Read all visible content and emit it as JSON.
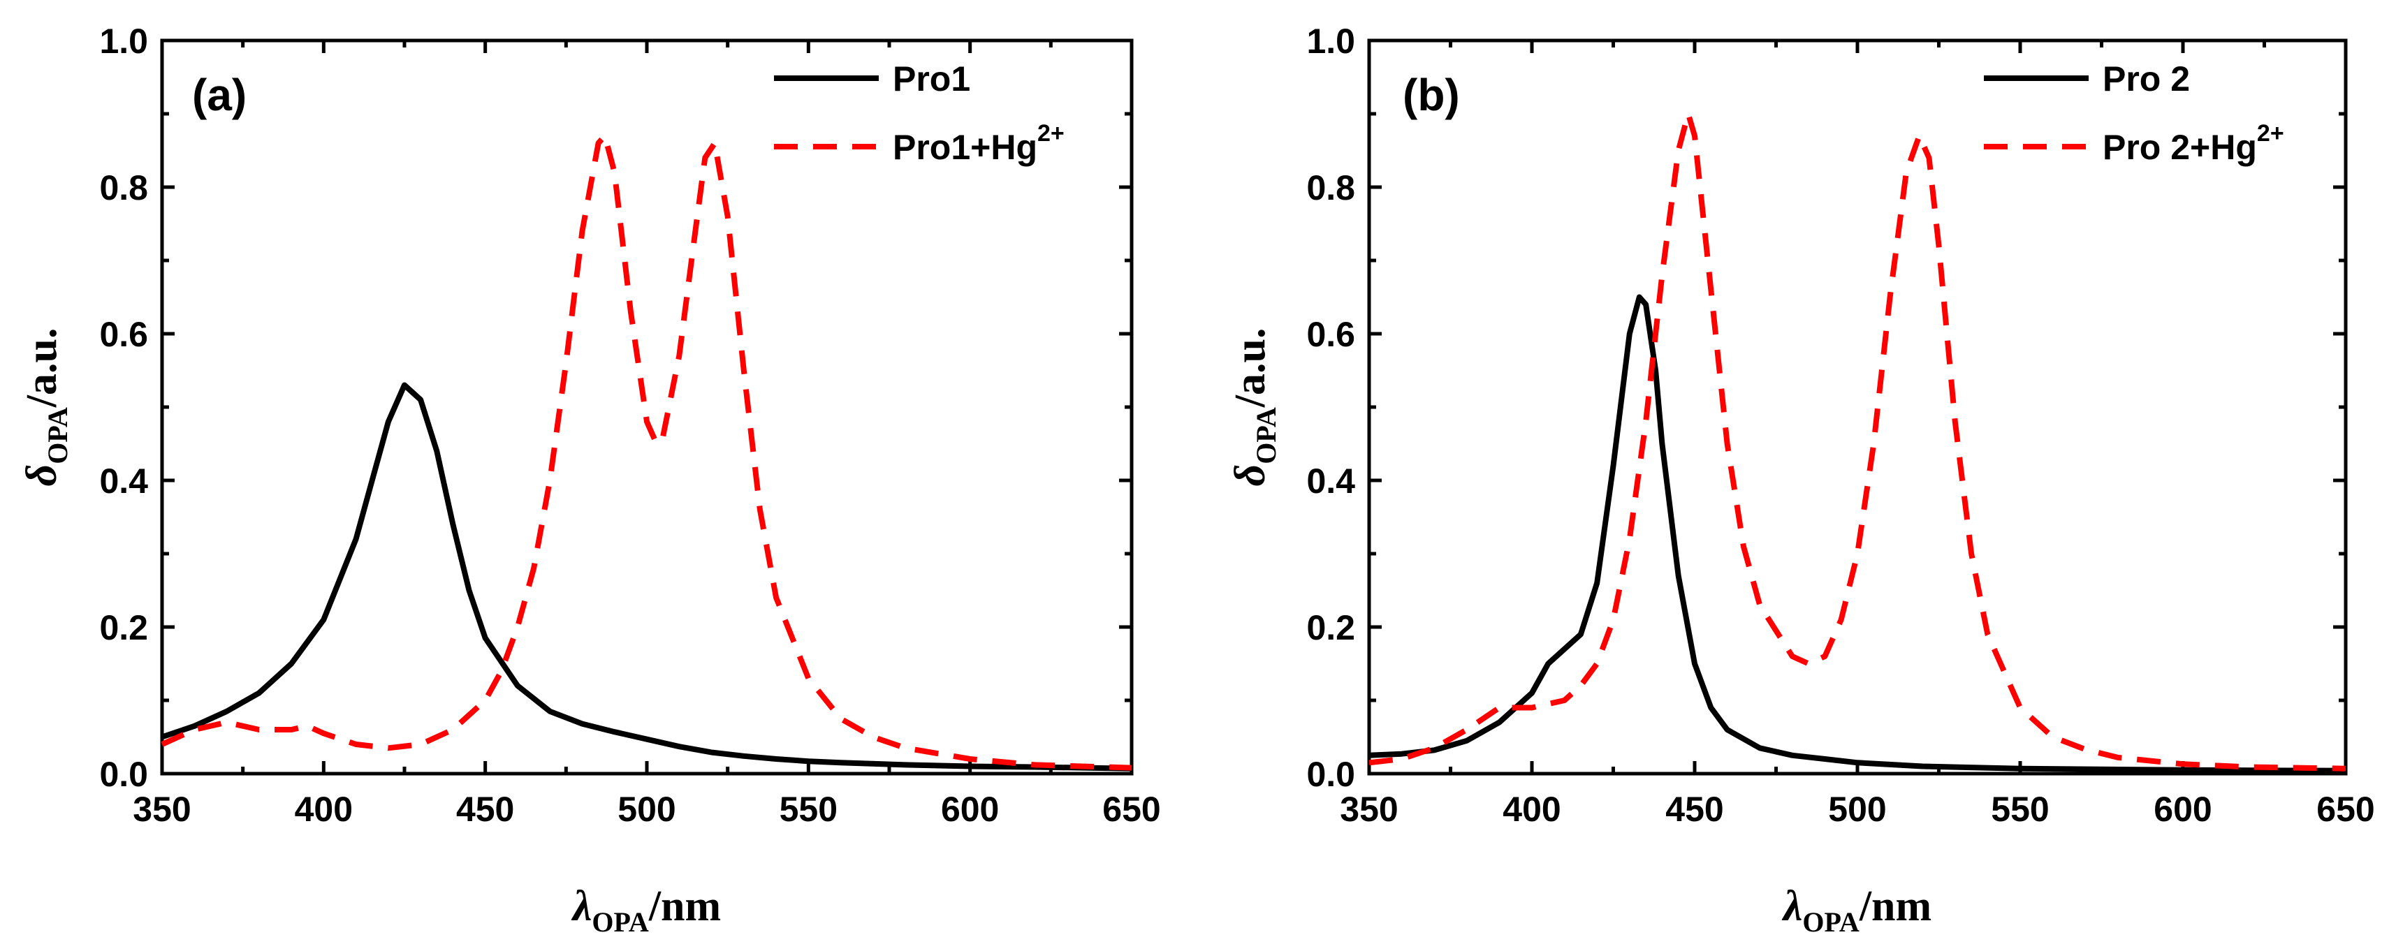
{
  "chart_data": [
    {
      "type": "line",
      "panel_label": "(a)",
      "xlabel_symbol": "λ",
      "xlabel_sub": "OPA",
      "xlabel_unit": "/nm",
      "ylabel_symbol": "δ",
      "ylabel_sub": "OPA",
      "ylabel_unit": "/a.u.",
      "xlim": [
        350,
        650
      ],
      "ylim": [
        0,
        1.0
      ],
      "xticks": [
        "350",
        "400",
        "450",
        "500",
        "550",
        "600",
        "650"
      ],
      "yticks": [
        "0.0",
        "0.2",
        "0.4",
        "0.6",
        "0.8",
        "1.0"
      ],
      "legend_position": "top-right",
      "series": [
        {
          "name": "Pro1",
          "legend_text": "Pro1",
          "legend_sup": "",
          "color": "#000000",
          "style": "solid",
          "x": [
            350,
            360,
            370,
            380,
            390,
            400,
            410,
            415,
            420,
            425,
            430,
            435,
            440,
            445,
            450,
            460,
            470,
            480,
            490,
            500,
            510,
            520,
            530,
            540,
            550,
            560,
            580,
            600,
            620,
            650
          ],
          "y": [
            0.05,
            0.065,
            0.085,
            0.11,
            0.15,
            0.21,
            0.32,
            0.4,
            0.48,
            0.53,
            0.51,
            0.44,
            0.34,
            0.25,
            0.185,
            0.12,
            0.085,
            0.068,
            0.057,
            0.047,
            0.037,
            0.029,
            0.024,
            0.02,
            0.017,
            0.015,
            0.012,
            0.01,
            0.009,
            0.007
          ]
        },
        {
          "name": "Pro1+Hg2+",
          "legend_text": "Pro1+Hg",
          "legend_sup": "2+",
          "color": "#ff0000",
          "style": "dashed",
          "x": [
            350,
            360,
            370,
            380,
            390,
            395,
            400,
            410,
            420,
            430,
            440,
            450,
            455,
            460,
            465,
            470,
            475,
            480,
            485,
            487,
            490,
            495,
            500,
            503,
            505,
            510,
            515,
            518,
            521,
            525,
            530,
            535,
            540,
            550,
            560,
            570,
            580,
            600,
            620,
            650
          ],
          "y": [
            0.04,
            0.06,
            0.07,
            0.06,
            0.06,
            0.065,
            0.055,
            0.04,
            0.035,
            0.04,
            0.06,
            0.1,
            0.14,
            0.2,
            0.28,
            0.4,
            0.56,
            0.74,
            0.86,
            0.87,
            0.82,
            0.63,
            0.48,
            0.45,
            0.46,
            0.57,
            0.74,
            0.84,
            0.86,
            0.76,
            0.55,
            0.36,
            0.24,
            0.13,
            0.075,
            0.05,
            0.035,
            0.02,
            0.012,
            0.008
          ]
        }
      ]
    },
    {
      "type": "line",
      "panel_label": "(b)",
      "xlabel_symbol": "λ",
      "xlabel_sub": "OPA",
      "xlabel_unit": "/nm",
      "ylabel_symbol": "δ",
      "ylabel_sub": "OPA",
      "ylabel_unit": "/a.u.",
      "xlim": [
        350,
        650
      ],
      "ylim": [
        0,
        1.0
      ],
      "xticks": [
        "350",
        "400",
        "450",
        "500",
        "550",
        "600",
        "650"
      ],
      "yticks": [
        "0.0",
        "0.2",
        "0.4",
        "0.6",
        "0.8",
        "1.0"
      ],
      "legend_position": "top-right",
      "series": [
        {
          "name": "Pro 2",
          "legend_text": "Pro 2",
          "legend_sup": "",
          "color": "#000000",
          "style": "solid",
          "x": [
            350,
            360,
            370,
            380,
            390,
            400,
            405,
            410,
            415,
            420,
            425,
            430,
            433,
            435,
            438,
            440,
            445,
            450,
            455,
            460,
            470,
            480,
            490,
            500,
            520,
            550,
            600,
            650
          ],
          "y": [
            0.025,
            0.027,
            0.032,
            0.045,
            0.07,
            0.11,
            0.15,
            0.17,
            0.19,
            0.26,
            0.42,
            0.6,
            0.65,
            0.64,
            0.55,
            0.45,
            0.27,
            0.15,
            0.09,
            0.06,
            0.035,
            0.025,
            0.02,
            0.015,
            0.01,
            0.007,
            0.005,
            0.004
          ]
        },
        {
          "name": "Pro 2+Hg2+",
          "legend_text": "Pro 2+Hg",
          "legend_sup": "2+",
          "color": "#ff0000",
          "style": "dashed",
          "x": [
            350,
            360,
            370,
            380,
            390,
            400,
            410,
            415,
            420,
            425,
            430,
            435,
            440,
            445,
            448,
            450,
            455,
            460,
            465,
            470,
            480,
            485,
            490,
            495,
            500,
            505,
            510,
            515,
            519,
            522,
            525,
            530,
            535,
            540,
            550,
            560,
            570,
            580,
            600,
            620,
            650
          ],
          "y": [
            0.015,
            0.02,
            0.035,
            0.06,
            0.09,
            0.09,
            0.1,
            0.12,
            0.15,
            0.21,
            0.32,
            0.48,
            0.68,
            0.85,
            0.9,
            0.87,
            0.66,
            0.45,
            0.31,
            0.23,
            0.16,
            0.15,
            0.16,
            0.21,
            0.3,
            0.45,
            0.65,
            0.82,
            0.87,
            0.84,
            0.72,
            0.48,
            0.3,
            0.19,
            0.09,
            0.05,
            0.033,
            0.022,
            0.013,
            0.009,
            0.007
          ]
        }
      ]
    }
  ]
}
